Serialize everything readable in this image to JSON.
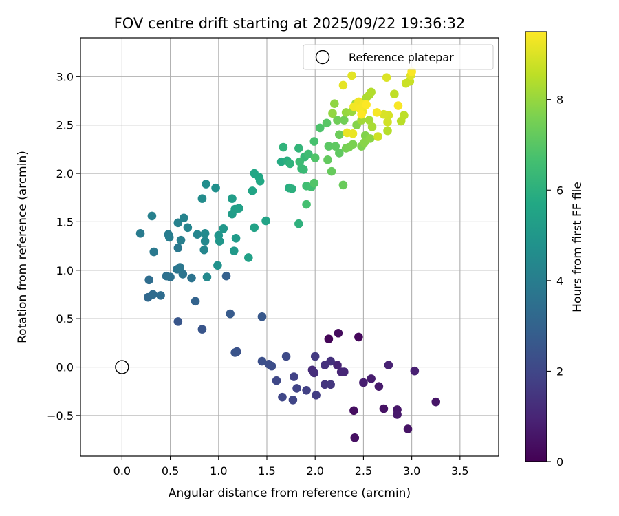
{
  "chart_data": {
    "type": "scatter",
    "title": "FOV centre drift starting at 2025/09/22 19:36:32",
    "xlabel": "Angular distance from reference (arcmin)",
    "ylabel": "Rotation from reference (arcmin)",
    "xlim": [
      -0.43,
      3.9
    ],
    "ylim": [
      -0.92,
      3.4
    ],
    "xticks": [
      0.0,
      0.5,
      1.0,
      1.5,
      2.0,
      2.5,
      3.0,
      3.5
    ],
    "xtick_labels": [
      "0.0",
      "0.5",
      "1.0",
      "1.5",
      "2.0",
      "2.5",
      "3.0",
      "3.5"
    ],
    "yticks": [
      -0.5,
      0.0,
      0.5,
      1.0,
      1.5,
      2.0,
      2.5,
      3.0
    ],
    "ytick_labels": [
      "−0.5",
      "0.0",
      "0.5",
      "1.0",
      "1.5",
      "2.0",
      "2.5",
      "3.0"
    ],
    "grid": true,
    "legend": {
      "position": "top-right",
      "entries": [
        "Reference platepar"
      ]
    },
    "reference_point": {
      "x": 0.0,
      "y": 0.0,
      "label": "Reference platepar"
    },
    "colorbar": {
      "label": "Hours from first FF file",
      "range": [
        0,
        9.5
      ],
      "colormap": "viridis",
      "ticks": [
        0,
        2,
        4,
        6,
        8
      ],
      "tick_labels": [
        "0",
        "2",
        "4",
        "6",
        "8"
      ]
    },
    "points": [
      [
        2.14,
        0.29,
        0.1
      ],
      [
        2.45,
        0.31,
        0.2
      ],
      [
        2.24,
        0.35,
        0.3
      ],
      [
        2.4,
        -0.45,
        0.35
      ],
      [
        2.41,
        -0.73,
        0.4
      ],
      [
        2.71,
        -0.43,
        0.45
      ],
      [
        2.96,
        -0.64,
        0.5
      ],
      [
        3.25,
        -0.36,
        0.55
      ],
      [
        2.85,
        -0.44,
        0.6
      ],
      [
        2.85,
        -0.49,
        0.65
      ],
      [
        2.66,
        -0.2,
        0.7
      ],
      [
        2.58,
        -0.12,
        0.75
      ],
      [
        2.5,
        -0.16,
        0.8
      ],
      [
        3.03,
        -0.04,
        0.85
      ],
      [
        2.76,
        0.02,
        0.9
      ],
      [
        2.23,
        0.02,
        0.95
      ],
      [
        2.27,
        -0.05,
        1.0
      ],
      [
        2.3,
        -0.05,
        1.05
      ],
      [
        1.97,
        -0.03,
        1.15
      ],
      [
        1.99,
        -0.06,
        1.25
      ],
      [
        2.16,
        0.06,
        1.3
      ],
      [
        2.1,
        0.02,
        1.35
      ],
      [
        2.1,
        -0.18,
        1.45
      ],
      [
        2.16,
        -0.18,
        1.5
      ],
      [
        2.0,
        0.11,
        1.6
      ],
      [
        2.01,
        -0.29,
        1.7
      ],
      [
        1.91,
        -0.24,
        1.8
      ],
      [
        1.78,
        -0.1,
        1.85
      ],
      [
        1.81,
        -0.22,
        1.9
      ],
      [
        1.77,
        -0.34,
        1.95
      ],
      [
        1.66,
        -0.31,
        2.0
      ],
      [
        1.6,
        -0.14,
        2.05
      ],
      [
        1.7,
        0.11,
        2.1
      ],
      [
        1.55,
        0.01,
        2.2
      ],
      [
        1.52,
        0.03,
        2.25
      ],
      [
        1.45,
        0.06,
        2.3
      ],
      [
        1.19,
        0.16,
        2.4
      ],
      [
        1.17,
        0.15,
        2.45
      ],
      [
        0.83,
        0.39,
        2.5
      ],
      [
        0.58,
        0.47,
        2.55
      ],
      [
        1.45,
        0.52,
        2.6
      ],
      [
        1.12,
        0.55,
        2.7
      ],
      [
        1.08,
        0.94,
        2.9
      ],
      [
        0.76,
        0.68,
        3.0
      ],
      [
        0.27,
        0.72,
        3.2
      ],
      [
        0.32,
        0.75,
        3.3
      ],
      [
        0.4,
        0.74,
        3.35
      ],
      [
        0.28,
        0.9,
        3.4
      ],
      [
        0.46,
        0.94,
        3.5
      ],
      [
        0.5,
        0.93,
        3.55
      ],
      [
        0.72,
        0.92,
        3.6
      ],
      [
        0.63,
        0.96,
        3.65
      ],
      [
        0.57,
        1.01,
        3.7
      ],
      [
        0.6,
        1.03,
        3.75
      ],
      [
        0.58,
        1.23,
        3.8
      ],
      [
        0.33,
        1.19,
        3.85
      ],
      [
        0.19,
        1.38,
        3.9
      ],
      [
        0.48,
        1.37,
        3.95
      ],
      [
        0.49,
        1.34,
        4.0
      ],
      [
        0.61,
        1.31,
        4.05
      ],
      [
        0.31,
        1.56,
        4.1
      ],
      [
        0.58,
        1.49,
        4.15
      ],
      [
        0.64,
        1.54,
        4.2
      ],
      [
        0.68,
        1.44,
        4.25
      ],
      [
        0.78,
        1.37,
        4.3
      ],
      [
        0.85,
        1.21,
        4.35
      ],
      [
        0.86,
        1.3,
        4.4
      ],
      [
        0.88,
        0.93,
        4.45
      ],
      [
        0.86,
        1.38,
        4.5
      ],
      [
        0.83,
        1.74,
        4.55
      ],
      [
        0.87,
        1.89,
        4.6
      ],
      [
        0.97,
        1.85,
        4.7
      ],
      [
        0.99,
        1.05,
        4.8
      ],
      [
        1.0,
        1.36,
        4.9
      ],
      [
        1.01,
        1.3,
        4.95
      ],
      [
        1.05,
        1.43,
        5.0
      ],
      [
        1.16,
        1.2,
        5.1
      ],
      [
        1.18,
        1.33,
        5.15
      ],
      [
        1.14,
        1.58,
        5.2
      ],
      [
        1.14,
        1.74,
        5.25
      ],
      [
        1.17,
        1.63,
        5.3
      ],
      [
        1.21,
        1.64,
        5.35
      ],
      [
        1.31,
        1.13,
        5.4
      ],
      [
        1.37,
        1.44,
        5.45
      ],
      [
        1.49,
        1.51,
        5.5
      ],
      [
        1.35,
        1.82,
        5.55
      ],
      [
        1.37,
        2.0,
        5.6
      ],
      [
        1.42,
        1.96,
        5.65
      ],
      [
        1.43,
        1.92,
        5.7
      ],
      [
        1.65,
        2.12,
        5.8
      ],
      [
        1.73,
        1.85,
        5.9
      ],
      [
        1.71,
        2.13,
        5.95
      ],
      [
        1.76,
        1.84,
        6.0
      ],
      [
        1.83,
        1.48,
        6.05
      ],
      [
        1.74,
        2.1,
        6.1
      ],
      [
        1.67,
        2.27,
        6.15
      ],
      [
        1.83,
        2.26,
        6.2
      ],
      [
        1.89,
        2.17,
        6.3
      ],
      [
        1.86,
        2.05,
        6.35
      ],
      [
        1.88,
        2.04,
        6.4
      ],
      [
        1.84,
        2.12,
        6.45
      ],
      [
        1.93,
        2.2,
        6.5
      ],
      [
        1.91,
        1.87,
        6.55
      ],
      [
        1.96,
        1.86,
        6.6
      ],
      [
        1.91,
        1.68,
        6.65
      ],
      [
        1.99,
        2.33,
        6.7
      ],
      [
        2.05,
        2.47,
        6.8
      ],
      [
        2.0,
        2.16,
        6.85
      ],
      [
        1.99,
        1.9,
        6.9
      ],
      [
        2.12,
        2.52,
        7.0
      ],
      [
        2.14,
        2.28,
        7.05
      ],
      [
        2.21,
        2.28,
        7.1
      ],
      [
        2.25,
        2.21,
        7.15
      ],
      [
        2.13,
        2.14,
        7.2
      ],
      [
        2.17,
        2.02,
        7.25
      ],
      [
        2.29,
        1.88,
        7.3
      ],
      [
        2.25,
        2.4,
        7.35
      ],
      [
        2.23,
        2.55,
        7.4
      ],
      [
        2.3,
        2.55,
        7.45
      ],
      [
        2.32,
        2.26,
        7.5
      ],
      [
        2.35,
        2.27,
        7.55
      ],
      [
        2.39,
        2.3,
        7.6
      ],
      [
        2.48,
        2.28,
        7.65
      ],
      [
        2.52,
        2.39,
        7.7
      ],
      [
        2.43,
        2.5,
        7.75
      ],
      [
        2.51,
        2.32,
        7.8
      ],
      [
        2.57,
        2.36,
        7.85
      ],
      [
        2.2,
        2.72,
        7.9
      ],
      [
        2.18,
        2.62,
        7.95
      ],
      [
        2.32,
        2.63,
        8.0
      ],
      [
        2.38,
        2.64,
        8.05
      ],
      [
        2.42,
        2.72,
        8.1
      ],
      [
        2.48,
        2.55,
        8.15
      ],
      [
        2.56,
        2.55,
        8.2
      ],
      [
        2.59,
        2.48,
        8.25
      ],
      [
        2.53,
        2.78,
        8.3
      ],
      [
        2.56,
        2.81,
        8.35
      ],
      [
        2.58,
        2.84,
        8.4
      ],
      [
        2.75,
        2.44,
        8.45
      ],
      [
        2.89,
        2.54,
        8.5
      ],
      [
        2.92,
        2.6,
        8.55
      ],
      [
        2.82,
        2.82,
        8.6
      ],
      [
        2.98,
        2.95,
        8.7
      ],
      [
        2.94,
        2.93,
        8.75
      ],
      [
        2.65,
        2.38,
        8.8
      ],
      [
        2.75,
        2.53,
        8.85
      ],
      [
        2.76,
        2.6,
        8.9
      ],
      [
        2.71,
        2.61,
        8.95
      ],
      [
        2.74,
        2.99,
        9.0
      ],
      [
        2.99,
        3.01,
        9.05
      ],
      [
        2.38,
        3.01,
        9.1
      ],
      [
        2.29,
        2.91,
        9.15
      ],
      [
        2.33,
        2.42,
        9.2
      ],
      [
        2.39,
        2.41,
        9.22
      ],
      [
        2.49,
        2.64,
        9.25
      ],
      [
        2.45,
        2.7,
        9.28
      ],
      [
        2.45,
        2.74,
        9.3
      ],
      [
        2.4,
        2.69,
        9.33
      ],
      [
        2.5,
        2.71,
        9.35
      ],
      [
        2.46,
        2.67,
        9.38
      ],
      [
        2.64,
        2.63,
        9.4
      ],
      [
        2.86,
        2.7,
        9.42
      ],
      [
        3.0,
        3.05,
        9.45
      ],
      [
        2.53,
        2.71,
        9.48
      ],
      [
        2.48,
        2.61,
        9.5
      ]
    ]
  }
}
